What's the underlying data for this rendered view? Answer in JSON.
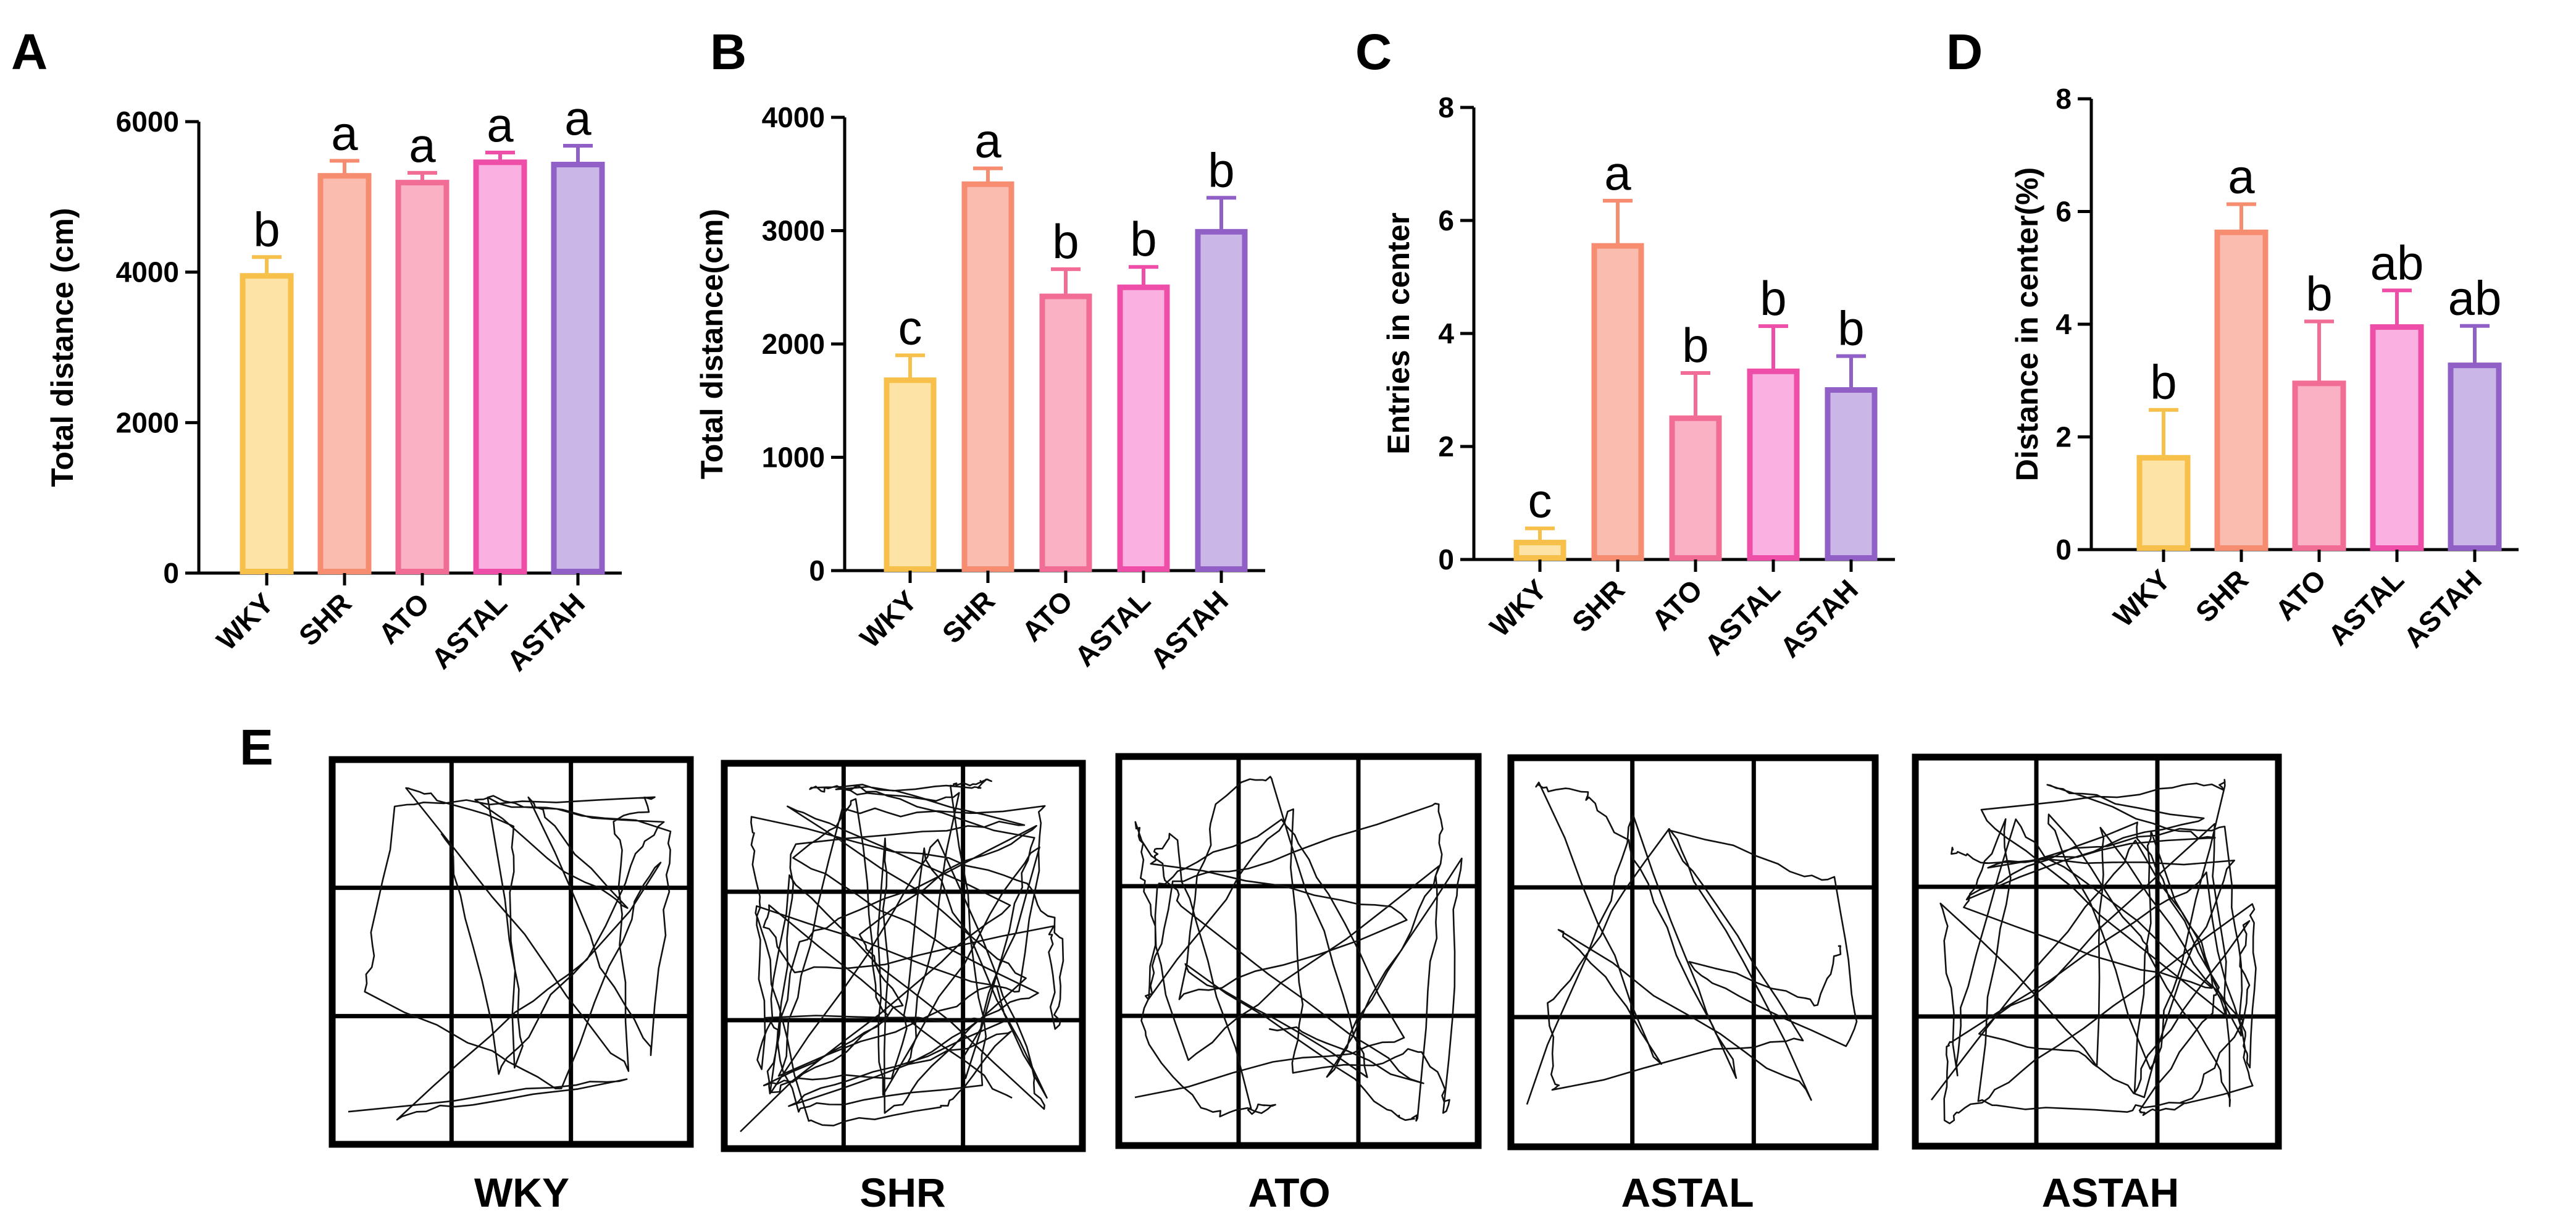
{
  "colors": {
    "WKY": {
      "fill": "#fde4a6",
      "stroke": "#f7c04a"
    },
    "SHR": {
      "fill": "#fbbcb0",
      "stroke": "#f68d70"
    },
    "ATO": {
      "fill": "#fbb1c4",
      "stroke": "#f26d95"
    },
    "ASTAL": {
      "fill": "#fab0e0",
      "stroke": "#ee4ea8"
    },
    "ASTAH": {
      "fill": "#cab6e7",
      "stroke": "#9160c7"
    }
  },
  "chart_data": [
    {
      "panel": "A",
      "type": "bar",
      "ylabel": "Total distance (cm)",
      "ylim": [
        0,
        6000
      ],
      "yticks": [
        "0",
        "2000",
        "4000",
        "6000"
      ],
      "categories": [
        "WKY",
        "SHR",
        "ATO",
        "ASTAL",
        "ASTAH"
      ],
      "values": [
        3950,
        5280,
        5190,
        5460,
        5430
      ],
      "errors": [
        250,
        200,
        130,
        130,
        250
      ],
      "letters": [
        "b",
        "a",
        "a",
        "a",
        "a"
      ]
    },
    {
      "panel": "B",
      "type": "bar",
      "ylabel": "Total distance(cm)",
      "ylim": [
        0,
        4000
      ],
      "yticks": [
        "0",
        "1000",
        "2000",
        "3000",
        "4000"
      ],
      "categories": [
        "WKY",
        "SHR",
        "ATO",
        "ASTAL",
        "ASTAH"
      ],
      "values": [
        1680,
        3410,
        2420,
        2500,
        2990
      ],
      "errors": [
        220,
        140,
        240,
        180,
        300
      ],
      "letters": [
        "c",
        "a",
        "b",
        "b",
        "b"
      ]
    },
    {
      "panel": "C",
      "type": "bar",
      "ylabel": "Entries in center",
      "ylim": [
        0,
        8
      ],
      "yticks": [
        "0",
        "2",
        "4",
        "6",
        "8"
      ],
      "categories": [
        "WKY",
        "SHR",
        "ATO",
        "ASTAL",
        "ASTAH"
      ],
      "values": [
        0.3,
        5.55,
        2.5,
        3.33,
        3.0
      ],
      "errors": [
        0.25,
        0.8,
        0.8,
        0.8,
        0.6
      ],
      "letters": [
        "c",
        "a",
        "b",
        "b",
        "b"
      ]
    },
    {
      "panel": "D",
      "type": "bar",
      "ylabel": "Distance in center(%)",
      "ylim": [
        0,
        8
      ],
      "yticks": [
        "0",
        "2",
        "4",
        "6",
        "8"
      ],
      "categories": [
        "WKY",
        "SHR",
        "ATO",
        "ASTAL",
        "ASTAH"
      ],
      "values": [
        1.63,
        5.63,
        2.95,
        3.95,
        3.27
      ],
      "errors": [
        0.85,
        0.5,
        1.1,
        0.65,
        0.7
      ],
      "letters": [
        "b",
        "a",
        "b",
        "ab",
        "ab"
      ]
    }
  ],
  "panel_e": {
    "letter": "E",
    "tracks": [
      "WKY",
      "SHR",
      "ATO",
      "ASTAL",
      "ASTAH"
    ]
  }
}
